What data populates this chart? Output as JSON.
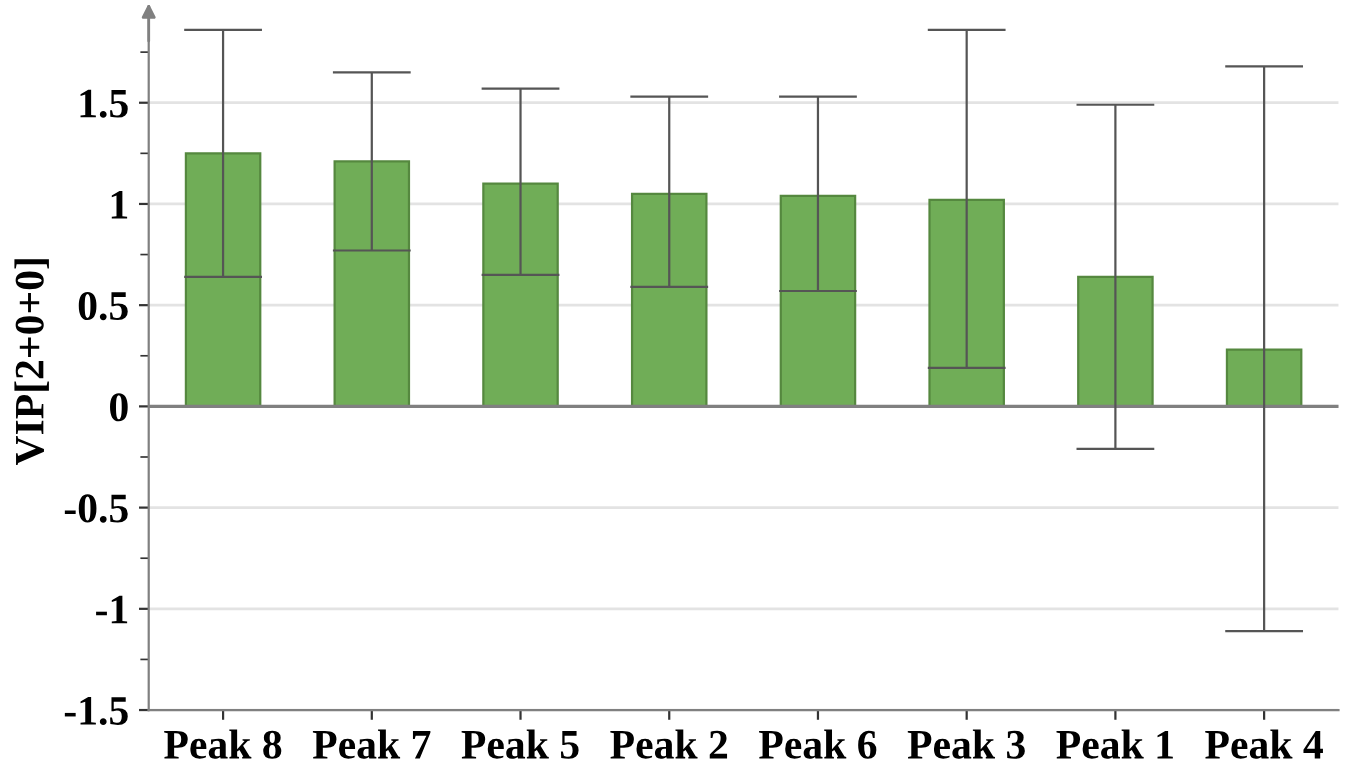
{
  "chart_data": {
    "type": "bar",
    "ylabel": "VIP[2+0+0]",
    "categories": [
      "Peak 8",
      "Peak 7",
      "Peak 5",
      "Peak 2",
      "Peak 6",
      "Peak 3",
      "Peak 1",
      "Peak 4"
    ],
    "series": [
      {
        "color": "#70ad57",
        "values": [
          1.25,
          1.21,
          1.1,
          1.05,
          1.04,
          1.02,
          0.64,
          0.28
        ],
        "errors": [
          [
            0.64,
            1.86
          ],
          [
            0.77,
            1.65
          ],
          [
            0.65,
            1.57
          ],
          [
            0.59,
            1.53
          ],
          [
            0.57,
            1.53
          ],
          [
            0.19,
            1.86
          ],
          [
            -0.21,
            1.49
          ],
          [
            -1.11,
            1.68
          ]
        ]
      }
    ],
    "ylim": [
      -1.5,
      1.95
    ],
    "yticks": [
      {
        "value": -1.5,
        "label": "-1.5"
      },
      {
        "value": -1.25,
        "label": null
      },
      {
        "value": -1,
        "label": "-1"
      },
      {
        "value": -0.75,
        "label": null
      },
      {
        "value": -0.5,
        "label": "-0.5"
      },
      {
        "value": -0.25,
        "label": null
      },
      0,
      {
        "value": 0.25,
        "label": null
      },
      0.5,
      {
        "value": 0.75,
        "label": null
      },
      1,
      {
        "value": 1.25,
        "label": null
      },
      1.5,
      {
        "value": 1.75,
        "label": null
      }
    ],
    "grid": "y"
  }
}
